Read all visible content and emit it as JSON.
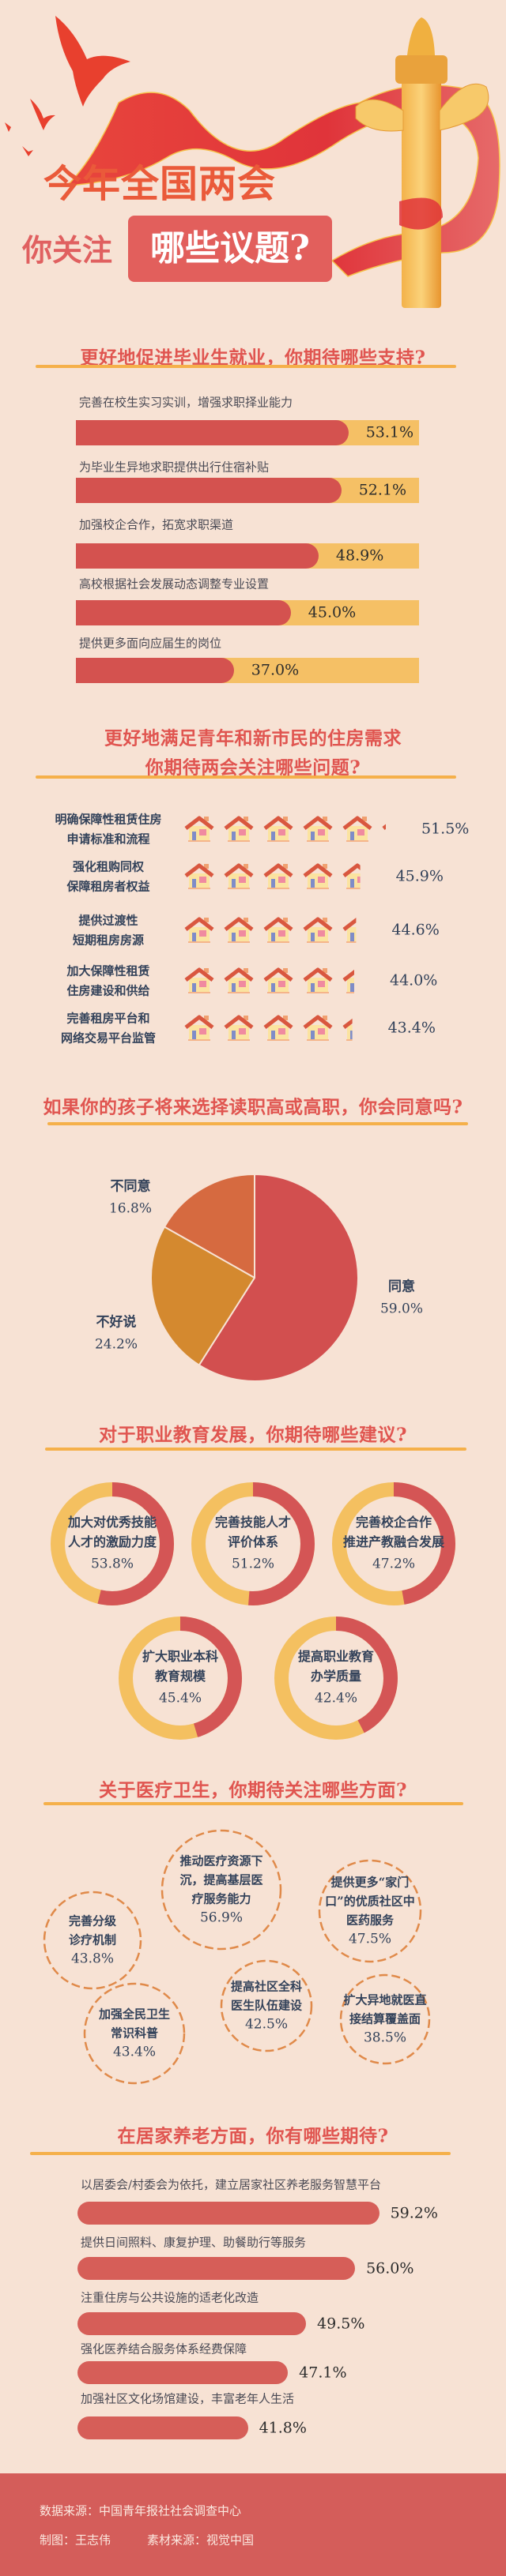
{
  "header": {
    "title_line1": "今年全国两会",
    "title_line2_prefix": "你关注",
    "title_line2_highlight": "哪些议题?"
  },
  "colors": {
    "background": "#f7e2d4",
    "title_red": "#e05550",
    "underline": "#f5b04a",
    "bar_red": "#d4524f",
    "track_yellow": "#f5c065",
    "pie_agree": "#d24f4f",
    "pie_unsure": "#d4892f",
    "pie_disagree": "#d66a40",
    "ring_dash": "#e08a4a",
    "footer": "#d45d5a"
  },
  "chart_data": [
    {
      "type": "bar",
      "title": "更好地促进毕业生就业，你期待哪些支持?",
      "categories": [
        "完善在校生实习实训，增强求职择业能力",
        "为毕业生异地求职提供出行住宿补贴",
        "加强校企合作，拓宽求职渠道",
        "高校根据社会发展动态调整专业设置",
        "提供更多面向应届生的岗位"
      ],
      "values": [
        53.1,
        52.1,
        48.9,
        45.0,
        37.0
      ],
      "value_labels": [
        "53.1%",
        "52.1%",
        "48.9%",
        "45.0%",
        "37.0%"
      ],
      "unit": "%"
    },
    {
      "type": "bar",
      "style": "pictograph-houses",
      "icon": "house-icon",
      "title_lines": [
        "更好地满足青年和新市民的住房需求",
        "你期待两会关注哪些问题?"
      ],
      "categories": [
        [
          "明确保障性租赁住房",
          "申请标准和流程"
        ],
        [
          "强化租购同权",
          "保障租房者权益"
        ],
        [
          "提供过渡性",
          "短期租房房源"
        ],
        [
          "加大保障性租赁",
          "住房建设和供给"
        ],
        [
          "完善租房平台和",
          "网络交易平台监管"
        ]
      ],
      "values": [
        51.5,
        45.9,
        44.6,
        44.0,
        43.4
      ],
      "value_labels": [
        "51.5%",
        "45.9%",
        "44.6%",
        "44.0%",
        "43.4%"
      ],
      "unit": "%"
    },
    {
      "type": "pie",
      "title": "如果你的孩子将来选择读职高或高职，你会同意吗?",
      "categories": [
        "同意",
        "不好说",
        "不同意"
      ],
      "values": [
        59.0,
        24.2,
        16.8
      ],
      "value_labels": [
        "59.0%",
        "24.2%",
        "16.8%"
      ],
      "colors": [
        "#d24f4f",
        "#d4892f",
        "#d66a40"
      ]
    },
    {
      "type": "pie",
      "style": "donut-per-item",
      "title": "对于职业教育发展，你期待哪些建议?",
      "categories": [
        [
          "加大对优秀技能",
          "人才的激励力度"
        ],
        [
          "完善技能人才",
          "评价体系"
        ],
        [
          "完善校企合作",
          "推进产教融合发展"
        ],
        [
          "扩大职业本科",
          "教育规模"
        ],
        [
          "提高职业教育",
          "办学质量"
        ]
      ],
      "values": [
        53.8,
        51.2,
        47.2,
        45.4,
        42.4
      ],
      "value_labels": [
        "53.8%",
        "51.2%",
        "47.2%",
        "45.4%",
        "42.4%"
      ],
      "colors": [
        "#d45555",
        "#f4c060"
      ]
    },
    {
      "type": "bar",
      "style": "dashed-bubbles",
      "title": "关于医疗卫生，你期待关注哪些方面?",
      "categories": [
        [
          "推动医疗资源下",
          "沉，提高基层医",
          "疗服务能力"
        ],
        [
          "完善分级",
          "诊疗机制"
        ],
        [
          "提供更多“家门",
          "口”的优质社区中",
          "医药服务"
        ],
        [
          "加强全民卫生",
          "常识科普"
        ],
        [
          "提高社区全科",
          "医生队伍建设"
        ],
        [
          "扩大异地就医直",
          "接结算覆盖面"
        ]
      ],
      "values": [
        56.9,
        43.8,
        47.5,
        43.4,
        42.5,
        38.5
      ],
      "value_labels": [
        "56.9%",
        "43.8%",
        "47.5%",
        "43.4%",
        "42.5%",
        "38.5%"
      ]
    },
    {
      "type": "bar",
      "title": "在居家养老方面，你有哪些期待?",
      "categories": [
        "以居委会/村委会为依托，建立居家社区养老服务智慧平台",
        "提供日间照料、康复护理、助餐助行等服务",
        "注重住房与公共设施的适老化改造",
        "强化医养结合服务体系经费保障",
        "加强社区文化场馆建设，丰富老年人生活"
      ],
      "values": [
        59.2,
        56.0,
        49.5,
        47.1,
        41.8
      ],
      "value_labels": [
        "59.2%",
        "56.0%",
        "49.5%",
        "47.1%",
        "41.8%"
      ],
      "unit": "%"
    }
  ],
  "footer": {
    "source": "数据来源：中国青年报社社会调查中心",
    "design": "制图：王志伟",
    "material": "素材来源：视觉中国"
  }
}
